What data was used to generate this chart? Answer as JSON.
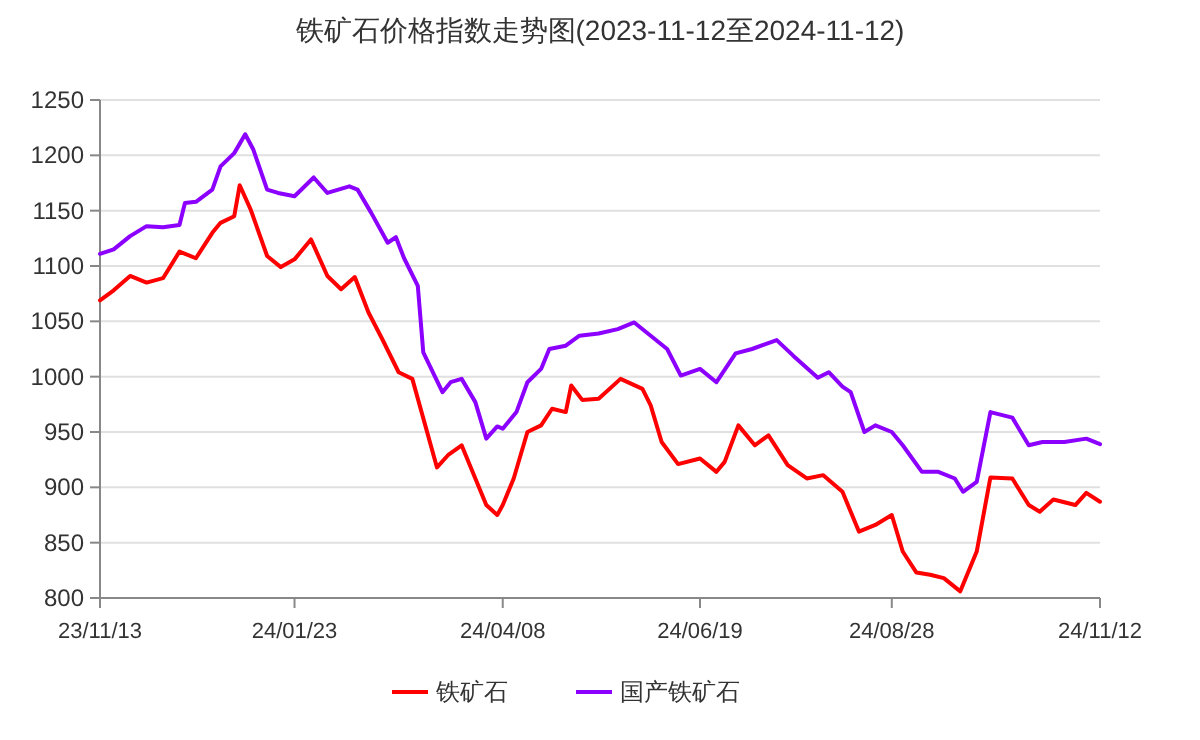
{
  "chart_data": {
    "type": "line",
    "title": "铁矿石价格指数走势图(2023-11-12至2024-11-12)",
    "xlim": [
      "2023-11-13",
      "2024-11-12"
    ],
    "xticks": [
      {
        "value": "2023-11-13",
        "label": "23/11/13"
      },
      {
        "value": "2024-01-23",
        "label": "24/01/23"
      },
      {
        "value": "2024-04-08",
        "label": "24/04/08"
      },
      {
        "value": "2024-06-19",
        "label": "24/06/19"
      },
      {
        "value": "2024-08-28",
        "label": "24/08/28"
      },
      {
        "value": "2024-11-12",
        "label": "24/11/12"
      }
    ],
    "ylim": [
      800,
      1250
    ],
    "yticks": [
      800,
      850,
      900,
      950,
      1000,
      1050,
      1100,
      1150,
      1200,
      1250
    ],
    "grid": "y",
    "legend": "bottom",
    "marker": "none",
    "line_style": "solid",
    "series": [
      {
        "name": "铁矿石",
        "color": "#ff0000",
        "x": [
          "2023-11-13",
          "2023-11-18",
          "2023-11-24",
          "2023-11-30",
          "2023-12-06",
          "2023-12-12",
          "2023-12-18",
          "2023-12-24",
          "2023-12-27",
          "2024-01-01",
          "2024-01-03",
          "2024-01-07",
          "2024-01-13",
          "2024-01-18",
          "2024-01-23",
          "2024-01-29",
          "2024-02-04",
          "2024-02-09",
          "2024-02-14",
          "2024-02-19",
          "2024-02-24",
          "2024-03-01",
          "2024-03-06",
          "2024-03-15",
          "2024-03-19",
          "2024-03-24",
          "2024-03-29",
          "2024-04-02",
          "2024-04-06",
          "2024-04-08",
          "2024-04-12",
          "2024-04-17",
          "2024-04-22",
          "2024-04-26",
          "2024-05-01",
          "2024-05-03",
          "2024-05-07",
          "2024-05-13",
          "2024-05-21",
          "2024-05-29",
          "2024-06-01",
          "2024-06-05",
          "2024-06-11",
          "2024-06-19",
          "2024-06-25",
          "2024-06-28",
          "2024-07-03",
          "2024-07-09",
          "2024-07-14",
          "2024-07-21",
          "2024-07-28",
          "2024-08-03",
          "2024-08-10",
          "2024-08-16",
          "2024-08-22",
          "2024-08-28",
          "2024-09-01",
          "2024-09-06",
          "2024-09-11",
          "2024-09-16",
          "2024-09-22",
          "2024-09-28",
          "2024-10-03",
          "2024-10-11",
          "2024-10-17",
          "2024-10-21",
          "2024-10-26",
          "2024-11-03",
          "2024-11-07",
          "2024-11-12"
        ],
        "values": [
          1069,
          1078,
          1091,
          1085,
          1089,
          1113,
          1107,
          1130,
          1139,
          1145,
          1173,
          1151,
          1109,
          1099,
          1106,
          1124,
          1091,
          1079,
          1090,
          1058,
          1034,
          1004,
          998,
          918,
          929,
          938,
          908,
          884,
          875,
          884,
          908,
          950,
          956,
          971,
          968,
          992,
          979,
          980,
          998,
          989,
          974,
          941,
          921,
          926,
          914,
          923,
          956,
          938,
          947,
          920,
          908,
          911,
          896,
          860,
          866,
          875,
          842,
          823,
          821,
          818,
          806,
          842,
          909,
          908,
          884,
          878,
          889,
          884,
          895,
          887
        ]
      },
      {
        "name": "国产铁矿石",
        "color": "#8b00ff",
        "x": [
          "2023-11-13",
          "2023-11-18",
          "2023-11-24",
          "2023-11-30",
          "2023-12-06",
          "2023-12-12",
          "2023-12-14",
          "2023-12-18",
          "2023-12-24",
          "2023-12-27",
          "2024-01-01",
          "2024-01-05",
          "2024-01-08",
          "2024-01-13",
          "2024-01-17",
          "2024-01-23",
          "2024-01-30",
          "2024-02-04",
          "2024-02-12",
          "2024-02-15",
          "2024-02-20",
          "2024-02-26",
          "2024-02-29",
          "2024-03-03",
          "2024-03-08",
          "2024-03-10",
          "2024-03-17",
          "2024-03-20",
          "2024-03-24",
          "2024-03-29",
          "2024-04-02",
          "2024-04-06",
          "2024-04-08",
          "2024-04-13",
          "2024-04-17",
          "2024-04-22",
          "2024-04-25",
          "2024-05-01",
          "2024-05-06",
          "2024-05-13",
          "2024-05-20",
          "2024-05-26",
          "2024-06-01",
          "2024-06-07",
          "2024-06-12",
          "2024-06-19",
          "2024-06-25",
          "2024-07-02",
          "2024-07-08",
          "2024-07-17",
          "2024-07-23",
          "2024-08-01",
          "2024-08-05",
          "2024-08-10",
          "2024-08-13",
          "2024-08-18",
          "2024-08-22",
          "2024-08-28",
          "2024-09-01",
          "2024-09-08",
          "2024-09-14",
          "2024-09-20",
          "2024-09-23",
          "2024-09-28",
          "2024-10-03",
          "2024-10-11",
          "2024-10-17",
          "2024-10-22",
          "2024-10-30",
          "2024-11-07",
          "2024-11-12"
        ],
        "values": [
          1111,
          1115,
          1127,
          1136,
          1135,
          1137,
          1157,
          1158,
          1169,
          1190,
          1202,
          1219,
          1205,
          1169,
          1166,
          1163,
          1180,
          1166,
          1172,
          1169,
          1148,
          1121,
          1126,
          1107,
          1082,
          1022,
          986,
          995,
          998,
          977,
          944,
          955,
          953,
          968,
          995,
          1007,
          1025,
          1028,
          1037,
          1039,
          1043,
          1049,
          1037,
          1025,
          1001,
          1007,
          995,
          1021,
          1025,
          1033,
          1019,
          999,
          1004,
          991,
          986,
          950,
          956,
          950,
          938,
          914,
          914,
          908,
          896,
          905,
          968,
          963,
          938,
          941,
          941,
          944,
          939
        ]
      }
    ]
  }
}
